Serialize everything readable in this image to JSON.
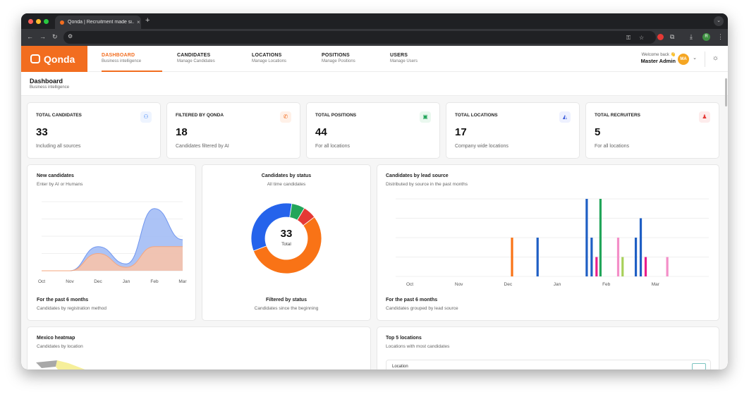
{
  "browser": {
    "tab_title": "Qonda | Recruitment made si...",
    "tab_close": "×",
    "new_tab": "+",
    "back": "←",
    "forward": "→",
    "reload": "↻",
    "profile_initial": "R"
  },
  "app": {
    "brand": "Qonda",
    "menu": [
      {
        "label": "DASHBOARD",
        "sub": "Business intelligence"
      },
      {
        "label": "CANDIDATES",
        "sub": "Manage Candidates"
      },
      {
        "label": "LOCATIONS",
        "sub": "Manage Locations"
      },
      {
        "label": "POSITIONS",
        "sub": "Manage Positions"
      },
      {
        "label": "USERS",
        "sub": "Manage Users"
      }
    ],
    "welcome": "Welcome back 👋",
    "user_name": "Master Admin",
    "avatar_initials": "MA"
  },
  "page": {
    "title": "Dashboard",
    "subtitle": "Business intelligence"
  },
  "stats": [
    {
      "label": "TOTAL CANDIDATES",
      "value": "33",
      "sub": "Including all sources",
      "icon": "users-icon",
      "color": "#3b82f6",
      "bg": "#eef4ff"
    },
    {
      "label": "FILTERED BY QONDA",
      "value": "18",
      "sub": "Candidates filtered by AI",
      "icon": "chat-icon",
      "color": "#f26d1f",
      "bg": "#fff1e8"
    },
    {
      "label": "TOTAL POSITIONS",
      "value": "44",
      "sub": "For all locations",
      "icon": "briefcase-icon",
      "color": "#22a55a",
      "bg": "#eaf8ef"
    },
    {
      "label": "TOTAL LOCATIONS",
      "value": "17",
      "sub": "Company wide locations",
      "icon": "map-icon",
      "color": "#3b5bdb",
      "bg": "#eef1ff"
    },
    {
      "label": "TOTAL RECRUITERS",
      "value": "5",
      "sub": "For all locations",
      "icon": "recruiter-icon",
      "color": "#e53935",
      "bg": "#fdecec"
    }
  ],
  "cards": {
    "new_candidates": {
      "title": "New candidates",
      "sub": "Enter by AI or Humans",
      "footer_title": "For the past 6 months",
      "footer_sub": "Candidates by registration method"
    },
    "by_status": {
      "title": "Candidates by status",
      "sub": "All time candidates",
      "center_value": "33",
      "center_label": "Total",
      "footer_title": "Filtered by status",
      "footer_sub": "Candidates since the beginning"
    },
    "lead_source": {
      "title": "Candidates by lead source",
      "sub": "Distributed by source in the past months",
      "footer_title": "For the past 6 months",
      "footer_sub": "Candidates grouped by lead source"
    },
    "heatmap": {
      "title": "Mexico heatmap",
      "sub": "Candidates by location"
    },
    "top_locations": {
      "title": "Top 5 locations",
      "sub": "Locations with most candidates",
      "column_header": "Location"
    }
  },
  "chart_data": [
    {
      "type": "area",
      "categories": [
        "Oct",
        "Nov",
        "Dec",
        "Jan",
        "Feb",
        "Mar"
      ],
      "series": [
        {
          "name": "",
          "values": [
            0,
            0,
            7,
            2,
            18,
            9
          ],
          "color": "#9db8f5"
        },
        {
          "name": "",
          "values": [
            0,
            0,
            5,
            1,
            7,
            7
          ],
          "color": "#fbc3a6"
        }
      ],
      "ylim": [
        0,
        20
      ],
      "grid": true
    },
    {
      "type": "pie",
      "donut": true,
      "slices": [
        {
          "value": 18,
          "color": "#f97316"
        },
        {
          "value": 11,
          "color": "#2563eb"
        },
        {
          "value": 2,
          "color": "#22a55a"
        },
        {
          "value": 2,
          "color": "#e53935"
        }
      ]
    },
    {
      "type": "bar",
      "categories": [
        "Oct",
        "Nov",
        "Dec",
        "Jan",
        "Feb",
        "Mar"
      ],
      "ylim": [
        0,
        20
      ],
      "grid": true,
      "bars": [
        {
          "category": "Dec",
          "offset": 0.08,
          "value": 10,
          "color": "#f97316"
        },
        {
          "category": "Dec",
          "offset": 0.6,
          "value": 10,
          "color": "#1f5fc4"
        },
        {
          "category": "Jan",
          "offset": 0.6,
          "value": 20,
          "color": "#1f5fc4"
        },
        {
          "category": "Jan",
          "offset": 0.7,
          "value": 10,
          "color": "#1f5fc4"
        },
        {
          "category": "Jan",
          "offset": 0.8,
          "value": 5,
          "color": "#e91e8c"
        },
        {
          "category": "Jan",
          "offset": 0.88,
          "value": 20,
          "color": "#22a55a"
        },
        {
          "category": "Feb",
          "offset": 0.24,
          "value": 10,
          "color": "#f48fc8"
        },
        {
          "category": "Feb",
          "offset": 0.33,
          "value": 5,
          "color": "#a8d15a"
        },
        {
          "category": "Feb",
          "offset": 0.6,
          "value": 10,
          "color": "#1f5fc4"
        },
        {
          "category": "Feb",
          "offset": 0.7,
          "value": 15,
          "color": "#1f5fc4"
        },
        {
          "category": "Feb",
          "offset": 0.8,
          "value": 5,
          "color": "#e91e8c"
        },
        {
          "category": "Mar",
          "offset": 0.24,
          "value": 5,
          "color": "#f48fc8"
        }
      ]
    }
  ]
}
